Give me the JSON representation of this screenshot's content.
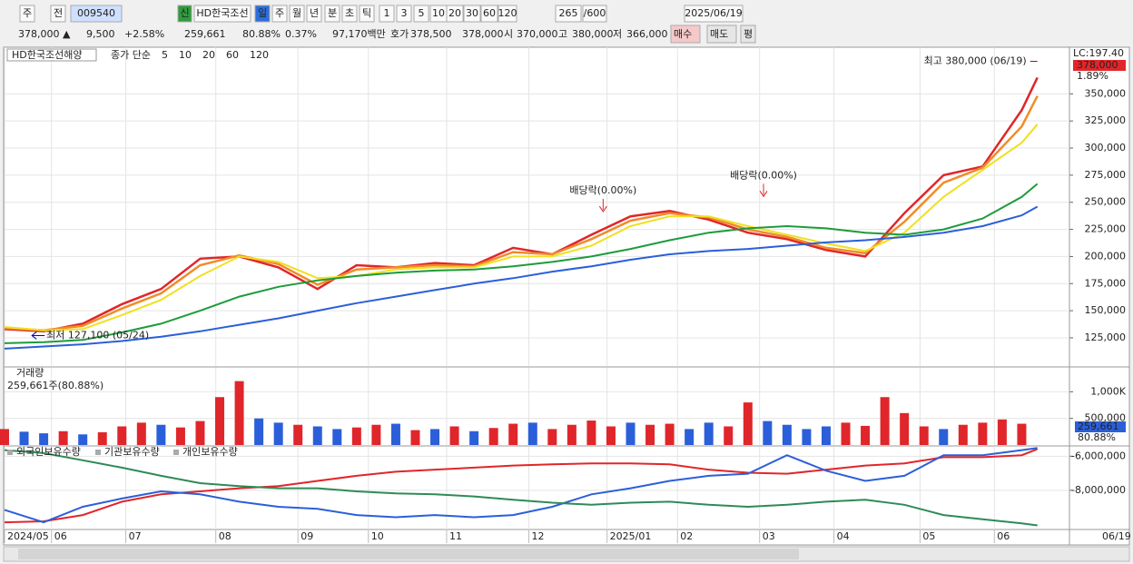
{
  "toolbar": {
    "items": [
      "주",
      "전",
      "009540",
      "HD한국조선",
      "신",
      "일",
      "주",
      "월",
      "년",
      "분",
      "초",
      "틱",
      "1",
      "3",
      "5",
      "10",
      "20",
      "30",
      "60",
      "120",
      "265",
      "/600",
      "2025/06/19"
    ]
  },
  "quote": {
    "items": [
      "378,000 ▲",
      "9,500",
      "+2.58%",
      "259,661",
      "80.88%",
      "0.37%",
      "97,170백만",
      "호가",
      "378,500",
      "378,000",
      "시",
      "370,000",
      "고",
      "380,000",
      "저",
      "366,000",
      "매수",
      "매도",
      "평"
    ]
  },
  "date_label": "06/19",
  "chart_data": [
    {
      "type": "line",
      "title": "HD한국조선해양",
      "legend_title": "종가 단순",
      "x": [
        0,
        10,
        20,
        30,
        40,
        50,
        60,
        70,
        80,
        90,
        100,
        110,
        120,
        130,
        140,
        150,
        160,
        170,
        180,
        190,
        200,
        210,
        220,
        230,
        240,
        250,
        260,
        264
      ],
      "xlim": [
        0,
        265
      ],
      "ylim": [
        99000,
        393000
      ],
      "yticks": [
        {
          "value": 125000,
          "label": "125,000"
        },
        {
          "value": 150000,
          "label": "150,000"
        },
        {
          "value": 175000,
          "label": "175,000"
        },
        {
          "value": 200000,
          "label": "200,000"
        },
        {
          "value": 225000,
          "label": "225,000"
        },
        {
          "value": 250000,
          "label": "250,000"
        },
        {
          "value": 275000,
          "label": "275,000"
        },
        {
          "value": 300000,
          "label": "300,000"
        },
        {
          "value": 325000,
          "label": "325,000"
        },
        {
          "value": 350000,
          "label": "350,000"
        }
      ],
      "grid": true,
      "series": [
        {
          "name": "5",
          "color": "#e0262a",
          "values": [
            133000,
            131000,
            138000,
            156000,
            170000,
            198000,
            200000,
            190000,
            170000,
            192000,
            190000,
            194000,
            192000,
            208000,
            202000,
            220000,
            237000,
            242000,
            234000,
            222000,
            216000,
            206000,
            200000,
            240000,
            275000,
            283000,
            335000,
            365000
          ]
        },
        {
          "name": "10",
          "color": "#f08c28",
          "values": [
            134000,
            132000,
            136000,
            152000,
            166000,
            192000,
            201000,
            193000,
            174000,
            188000,
            190000,
            192000,
            191000,
            204000,
            202000,
            216000,
            233000,
            240000,
            236000,
            225000,
            218000,
            208000,
            203000,
            232000,
            268000,
            282000,
            320000,
            348000
          ]
        },
        {
          "name": "20",
          "color": "#f0e020",
          "values": [
            135000,
            132000,
            133000,
            146000,
            160000,
            182000,
            200000,
            195000,
            180000,
            182000,
            188000,
            190000,
            190000,
            200000,
            200000,
            210000,
            228000,
            237000,
            237000,
            228000,
            220000,
            212000,
            205000,
            222000,
            255000,
            280000,
            305000,
            322000
          ]
        },
        {
          "name": "60",
          "color": "#1e9b3c",
          "values": [
            120000,
            121000,
            123000,
            130000,
            138000,
            150000,
            163000,
            172000,
            178000,
            182000,
            185000,
            187000,
            188000,
            191000,
            195000,
            200000,
            207000,
            215000,
            222000,
            226000,
            228000,
            226000,
            222000,
            220000,
            225000,
            235000,
            255000,
            267000
          ]
        },
        {
          "name": "120",
          "color": "#2b5fd9",
          "values": [
            115000,
            117000,
            119000,
            122000,
            126000,
            131000,
            137000,
            143000,
            150000,
            157000,
            163000,
            169000,
            175000,
            180000,
            186000,
            191000,
            197000,
            202000,
            205000,
            207000,
            210000,
            213000,
            215000,
            218000,
            222000,
            228000,
            238000,
            246000
          ]
        }
      ],
      "annotations": [
        {
          "text": "최고 380,000 (06/19)",
          "x": 264,
          "y": 380000
        },
        {
          "text": "최저 127,100 (05/24)",
          "x": 7,
          "y": 127100
        },
        {
          "text": "배당락(0.00%)",
          "x": 153,
          "y": 238000
        },
        {
          "text": "배당락(0.00%)",
          "x": 194,
          "y": 252000
        }
      ],
      "right_labels": [
        "LC:197.40",
        "378,000",
        "1.89%"
      ]
    },
    {
      "type": "bar",
      "title": "거래량",
      "subtitle": "259,661주(80.88%)",
      "x": [
        0,
        5,
        10,
        15,
        20,
        25,
        30,
        35,
        40,
        45,
        50,
        55,
        60,
        65,
        70,
        75,
        80,
        85,
        90,
        95,
        100,
        105,
        110,
        115,
        120,
        125,
        130,
        135,
        140,
        145,
        150,
        155,
        160,
        165,
        170,
        175,
        180,
        185,
        190,
        195,
        200,
        205,
        210,
        215,
        220,
        225,
        230,
        235,
        240,
        245,
        250,
        255,
        260
      ],
      "values": [
        300000,
        250000,
        220000,
        260000,
        200000,
        240000,
        350000,
        420000,
        380000,
        330000,
        450000,
        900000,
        1200000,
        500000,
        420000,
        380000,
        350000,
        300000,
        330000,
        380000,
        400000,
        280000,
        300000,
        350000,
        260000,
        320000,
        400000,
        420000,
        300000,
        380000,
        460000,
        350000,
        420000,
        380000,
        400000,
        300000,
        420000,
        350000,
        800000,
        450000,
        380000,
        300000,
        350000,
        420000,
        360000,
        900000,
        600000,
        350000,
        300000,
        380000,
        420000,
        480000,
        400000
      ],
      "colors": [
        "#e0262a",
        "#2b5fd9",
        "#2b5fd9",
        "#e0262a",
        "#2b5fd9",
        "#e0262a",
        "#e0262a",
        "#e0262a",
        "#2b5fd9",
        "#e0262a",
        "#e0262a",
        "#e0262a",
        "#e0262a",
        "#2b5fd9",
        "#2b5fd9",
        "#e0262a",
        "#2b5fd9",
        "#2b5fd9",
        "#e0262a",
        "#e0262a",
        "#2b5fd9",
        "#e0262a",
        "#2b5fd9",
        "#e0262a",
        "#2b5fd9",
        "#e0262a",
        "#e0262a",
        "#2b5fd9",
        "#e0262a",
        "#e0262a",
        "#e0262a",
        "#e0262a",
        "#2b5fd9",
        "#e0262a",
        "#e0262a",
        "#2b5fd9",
        "#2b5fd9",
        "#e0262a",
        "#e0262a",
        "#2b5fd9",
        "#2b5fd9",
        "#2b5fd9",
        "#2b5fd9",
        "#e0262a",
        "#e0262a",
        "#e0262a",
        "#e0262a",
        "#e0262a",
        "#2b5fd9",
        "#e0262a",
        "#e0262a",
        "#e0262a",
        "#e0262a"
      ],
      "xlim": [
        0,
        265
      ],
      "ylim": [
        0,
        1450000
      ],
      "yticks": [
        {
          "value": 500000,
          "label": "500,000"
        },
        {
          "value": 1000000,
          "label": "1,000K"
        }
      ],
      "right_labels": [
        "259,661",
        "80.88%"
      ]
    },
    {
      "type": "line",
      "x": [
        0,
        10,
        20,
        30,
        40,
        50,
        60,
        70,
        80,
        90,
        100,
        110,
        120,
        130,
        140,
        150,
        160,
        170,
        180,
        190,
        200,
        210,
        220,
        230,
        240,
        250,
        260,
        264
      ],
      "xlim": [
        0,
        265
      ],
      "ylim": [
        -10300000,
        -5450000
      ],
      "yticks": [
        {
          "value": -8000000,
          "label": "-8,000,000"
        },
        {
          "value": -6000000,
          "label": "-6,000,000"
        }
      ],
      "xticks": [
        {
          "value": 0,
          "label": "2024/05"
        },
        {
          "value": 12,
          "label": "06"
        },
        {
          "value": 31,
          "label": "07"
        },
        {
          "value": 54,
          "label": "08"
        },
        {
          "value": 75,
          "label": "09"
        },
        {
          "value": 93,
          "label": "10"
        },
        {
          "value": 113,
          "label": "11"
        },
        {
          "value": 134,
          "label": "12"
        },
        {
          "value": 154,
          "label": "2025/01"
        },
        {
          "value": 172,
          "label": "02"
        },
        {
          "value": 193,
          "label": "03"
        },
        {
          "value": 212,
          "label": "04"
        },
        {
          "value": 234,
          "label": "05"
        },
        {
          "value": 253,
          "label": "06"
        }
      ],
      "series": [
        {
          "name": "외국인보유수량",
          "color": "#e0262a",
          "values": [
            -9880000,
            -9820000,
            -9450000,
            -8670000,
            -8240000,
            -8060000,
            -7880000,
            -7760000,
            -7450000,
            -7150000,
            -6910000,
            -6790000,
            -6670000,
            -6550000,
            -6480000,
            -6420000,
            -6420000,
            -6480000,
            -6790000,
            -6970000,
            -7030000,
            -6790000,
            -6550000,
            -6420000,
            -6060000,
            -6060000,
            -5940000,
            -5580000
          ]
        },
        {
          "name": "기관보유수량",
          "color": "#2b5fd9",
          "values": [
            -9150000,
            -9880000,
            -8970000,
            -8480000,
            -8060000,
            -8240000,
            -8670000,
            -8970000,
            -9090000,
            -9450000,
            -9580000,
            -9450000,
            -9580000,
            -9450000,
            -8970000,
            -8240000,
            -7880000,
            -7450000,
            -7150000,
            -7030000,
            -5940000,
            -6850000,
            -7450000,
            -7150000,
            -5940000,
            -5940000,
            -5640000,
            -5520000
          ]
        },
        {
          "name": "개인보유수량",
          "color": "#2e8b57",
          "values": [
            -5640000,
            -5820000,
            -6240000,
            -6670000,
            -7150000,
            -7580000,
            -7760000,
            -7880000,
            -7880000,
            -8060000,
            -8180000,
            -8240000,
            -8360000,
            -8550000,
            -8730000,
            -8850000,
            -8730000,
            -8670000,
            -8850000,
            -8970000,
            -8850000,
            -8670000,
            -8550000,
            -8850000,
            -9450000,
            -9700000,
            -9940000,
            -10060000
          ]
        }
      ]
    }
  ]
}
